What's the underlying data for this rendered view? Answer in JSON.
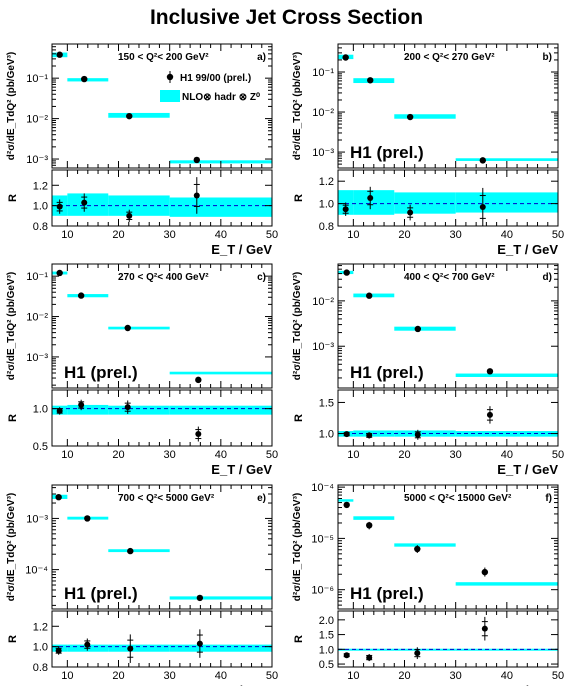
{
  "page": {
    "title": "Inclusive Jet Cross Section"
  },
  "theme": {
    "band_color": "#00ffff",
    "marker_color": "#000000",
    "ratio_line_color": "#0000cc"
  },
  "labels": {
    "ylabel_top": "d²σ/dE_TdQ² (pb/GeV³)",
    "ylabel_ratio": "R",
    "xlabel": "E_T / GeV",
    "h1_tag": "H1 (prel.)",
    "legend_data": "H1 99/00 (prel.)",
    "legend_theory": "NLO⊗ hadr ⊗ Z⁰"
  },
  "chart_data": [
    {
      "type": "scatter",
      "panel": "a)",
      "q2_range": "150 < Q²< 200 GeV²",
      "show_legend": true,
      "show_h1_label": false,
      "x_ticks": [
        10,
        20,
        30,
        40,
        50
      ],
      "xlim": [
        7,
        50
      ],
      "ylim_log": [
        0.0006,
        0.7
      ],
      "y_ticks_log": [
        0.001,
        0.01,
        0.1
      ],
      "y_tick_labels": [
        "10⁻³",
        "10⁻²",
        "10⁻¹"
      ],
      "bins": [
        [
          7,
          10
        ],
        [
          10,
          18
        ],
        [
          18,
          30
        ],
        [
          30,
          50
        ]
      ],
      "points_x": [
        8.5,
        13.3,
        22.1,
        35.3
      ],
      "cross_section": [
        0.38,
        0.095,
        0.0115,
        0.00095
      ],
      "nlo_band": [
        [
          0.33,
          0.43
        ],
        [
          0.083,
          0.1
        ],
        [
          0.0105,
          0.0138
        ],
        [
          0.00078,
          0.00093
        ]
      ],
      "ratio_ylim": [
        0.8,
        1.35
      ],
      "ratio_ticks": [
        0.8,
        1.0,
        1.2
      ],
      "ratio_tick_labels": [
        "0.8",
        "1.0",
        "1.2"
      ],
      "ratio": [
        0.99,
        1.03,
        0.9,
        1.1
      ],
      "ratio_err": [
        0.07,
        0.09,
        0.06,
        0.18
      ],
      "ratio_band": [
        [
          0.9,
          1.1
        ],
        [
          0.9,
          1.12
        ],
        [
          0.9,
          1.1
        ],
        [
          0.89,
          1.08
        ]
      ]
    },
    {
      "type": "scatter",
      "panel": "b)",
      "q2_range": "200 < Q²< 270 GeV²",
      "show_legend": false,
      "show_h1_label": true,
      "x_ticks": [
        10,
        20,
        30,
        40,
        50
      ],
      "xlim": [
        7,
        50
      ],
      "ylim_log": [
        0.0004,
        0.5
      ],
      "y_ticks_log": [
        0.001,
        0.01,
        0.1
      ],
      "y_tick_labels": [
        "10⁻³",
        "10⁻²",
        "10⁻¹"
      ],
      "bins": [
        [
          7,
          10
        ],
        [
          10,
          18
        ],
        [
          18,
          30
        ],
        [
          30,
          50
        ]
      ],
      "points_x": [
        8.5,
        13.3,
        21.1,
        35.3
      ],
      "cross_section": [
        0.23,
        0.062,
        0.0075,
        0.00062
      ],
      "nlo_band": [
        [
          0.21,
          0.27
        ],
        [
          0.053,
          0.07
        ],
        [
          0.0068,
          0.0088
        ],
        [
          0.0006,
          0.0007
        ]
      ],
      "ratio_ylim": [
        0.8,
        1.3
      ],
      "ratio_ticks": [
        0.8,
        1.0,
        1.2
      ],
      "ratio_tick_labels": [
        "0.8",
        "1.0",
        "1.2"
      ],
      "ratio": [
        0.95,
        1.05,
        0.92,
        0.97
      ],
      "ratio_err": [
        0.06,
        0.1,
        0.07,
        0.17
      ],
      "ratio_band": [
        [
          0.9,
          1.12
        ],
        [
          0.9,
          1.12
        ],
        [
          0.91,
          1.1
        ],
        [
          0.92,
          1.1
        ]
      ]
    },
    {
      "type": "scatter",
      "panel": "c)",
      "q2_range": "270 < Q²< 400 GeV²",
      "show_legend": false,
      "show_h1_label": true,
      "x_ticks": [
        10,
        20,
        30,
        40,
        50
      ],
      "xlim": [
        7,
        50
      ],
      "ylim_log": [
        0.00017,
        0.2
      ],
      "y_ticks_log": [
        0.001,
        0.01,
        0.1
      ],
      "y_tick_labels": [
        "10⁻³",
        "10⁻²",
        "10⁻¹"
      ],
      "bins": [
        [
          7,
          10
        ],
        [
          10,
          18
        ],
        [
          18,
          30
        ],
        [
          30,
          50
        ]
      ],
      "points_x": [
        8.5,
        12.7,
        21.8,
        35.6
      ],
      "cross_section": [
        0.12,
        0.033,
        0.0052,
        0.00027
      ],
      "nlo_band": [
        [
          0.11,
          0.13
        ],
        [
          0.03,
          0.036
        ],
        [
          0.0048,
          0.0056
        ],
        [
          0.00037,
          0.00043
        ]
      ],
      "ratio_ylim": [
        0.5,
        1.25
      ],
      "ratio_ticks": [
        0.5,
        1.0
      ],
      "ratio_tick_labels": [
        "0.5",
        "1.0"
      ],
      "ratio": [
        0.97,
        1.05,
        1.02,
        0.66
      ],
      "ratio_err": [
        0.05,
        0.07,
        0.09,
        0.1
      ],
      "ratio_band": [
        [
          0.92,
          1.04
        ],
        [
          0.92,
          1.05
        ],
        [
          0.92,
          1.04
        ],
        [
          0.92,
          1.04
        ]
      ]
    },
    {
      "type": "scatter",
      "panel": "d)",
      "q2_range": "400 < Q²< 700 GeV²",
      "show_legend": false,
      "show_h1_label": true,
      "x_ticks": [
        10,
        20,
        30,
        40,
        50
      ],
      "xlim": [
        7,
        50
      ],
      "ylim_log": [
        0.00012,
        0.065
      ],
      "y_ticks_log": [
        0.001,
        0.01
      ],
      "y_tick_labels": [
        "10⁻³",
        "10⁻²"
      ],
      "bins": [
        [
          7,
          10
        ],
        [
          10,
          18
        ],
        [
          18,
          30
        ],
        [
          30,
          50
        ]
      ],
      "points_x": [
        8.7,
        13.1,
        22.6,
        36.7
      ],
      "cross_section": [
        0.042,
        0.013,
        0.0024,
        0.00028
      ],
      "nlo_band": [
        [
          0.039,
          0.046
        ],
        [
          0.012,
          0.0145
        ],
        [
          0.0022,
          0.0027
        ],
        [
          0.00021,
          0.00025
        ]
      ],
      "ratio_ylim": [
        0.8,
        1.7
      ],
      "ratio_ticks": [
        1.0,
        1.5
      ],
      "ratio_tick_labels": [
        "1.0",
        "1.5"
      ],
      "ratio": [
        0.99,
        0.97,
        0.98,
        1.3
      ],
      "ratio_err": [
        0.04,
        0.05,
        0.08,
        0.14
      ],
      "ratio_band": [
        [
          0.95,
          1.04
        ],
        [
          0.95,
          1.05
        ],
        [
          0.95,
          1.05
        ],
        [
          0.95,
          1.04
        ]
      ]
    },
    {
      "type": "scatter",
      "panel": "e)",
      "q2_range": "700 < Q²< 5000 GeV²",
      "show_legend": false,
      "show_h1_label": true,
      "x_ticks": [
        10,
        20,
        30,
        40,
        50
      ],
      "xlim": [
        7,
        50
      ],
      "ylim_log": [
        1.7e-05,
        0.0045
      ],
      "y_ticks_log": [
        0.0001,
        0.001
      ],
      "y_tick_labels": [
        "10⁻⁴",
        "10⁻³"
      ],
      "bins": [
        [
          7,
          10
        ],
        [
          10,
          18
        ],
        [
          18,
          30
        ],
        [
          30,
          50
        ]
      ],
      "points_x": [
        8.3,
        13.9,
        22.3,
        35.9
      ],
      "cross_section": [
        0.0026,
        0.001,
        0.00023,
        2.8e-05
      ],
      "nlo_band": [
        [
          0.0024,
          0.0029
        ],
        [
          0.00095,
          0.00108
        ],
        [
          0.00022,
          0.00025
        ],
        [
          2.6e-05,
          3e-05
        ]
      ],
      "ratio_ylim": [
        0.8,
        1.35
      ],
      "ratio_ticks": [
        0.8,
        1.0,
        1.2
      ],
      "ratio_tick_labels": [
        "0.8",
        "1.0",
        "1.2"
      ],
      "ratio": [
        0.96,
        1.02,
        0.98,
        1.03
      ],
      "ratio_err": [
        0.04,
        0.06,
        0.14,
        0.14
      ],
      "ratio_band": [
        [
          0.95,
          1.02
        ],
        [
          0.95,
          1.02
        ],
        [
          0.95,
          1.02
        ],
        [
          0.95,
          1.02
        ]
      ]
    },
    {
      "type": "scatter",
      "panel": "f)",
      "q2_range": "5000 < Q²< 15000 GeV²",
      "show_legend": false,
      "show_h1_label": true,
      "x_ticks": [
        10,
        20,
        30,
        40,
        50
      ],
      "xlim": [
        7,
        50
      ],
      "ylim_log": [
        4.2e-07,
        0.00011
      ],
      "y_ticks_log": [
        1e-06,
        1e-05,
        0.0001
      ],
      "y_tick_labels": [
        "10⁻⁶",
        "10⁻⁵",
        "10⁻⁴"
      ],
      "bins": [
        [
          7,
          10
        ],
        [
          10,
          18
        ],
        [
          18,
          30
        ],
        [
          30,
          50
        ]
      ],
      "points_x": [
        8.7,
        13.1,
        22.5,
        35.7
      ],
      "cross_section": [
        4.5e-05,
        1.8e-05,
        6.2e-06,
        2.2e-06
      ],
      "cross_section_err": [
        [
          4e-05,
          5.1e-05
        ],
        [
          1.5e-05,
          2.1e-05
        ],
        [
          5.2e-06,
          7.4e-06
        ],
        [
          1.8e-06,
          2.7e-06
        ]
      ],
      "nlo_band": [
        [
          5.2e-05,
          5.8e-05
        ],
        [
          2.3e-05,
          2.7e-05
        ],
        [
          6.9e-06,
          8e-06
        ],
        [
          1.2e-06,
          1.4e-06
        ]
      ],
      "ratio_ylim": [
        0.4,
        2.3
      ],
      "ratio_ticks": [
        0.5,
        1.0,
        1.5,
        2.0
      ],
      "ratio_tick_labels": [
        "0.5",
        "1.0",
        "1.5",
        "2.0"
      ],
      "ratio": [
        0.8,
        0.72,
        0.87,
        1.7
      ],
      "ratio_err": [
        0.08,
        0.12,
        0.2,
        0.4
      ],
      "ratio_band": [
        [
          0.98,
          1.02
        ],
        [
          0.98,
          1.02
        ],
        [
          0.98,
          1.02
        ],
        [
          0.98,
          1.02
        ]
      ]
    }
  ]
}
